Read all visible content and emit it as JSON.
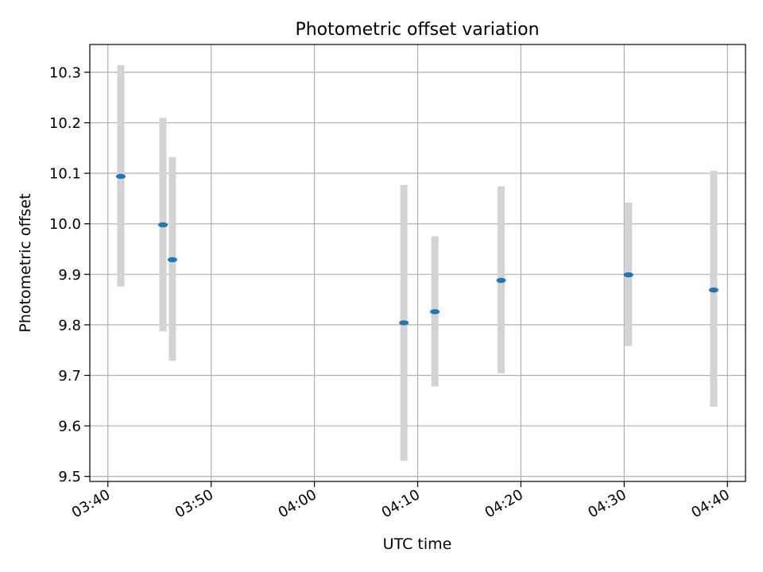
{
  "chart_data": {
    "type": "scatter",
    "title": "Photometric offset variation",
    "xlabel": "UTC time",
    "ylabel": "Photometric offset",
    "x_tick_labels": [
      "03:40",
      "03:50",
      "04:00",
      "04:10",
      "04:20",
      "04:30",
      "04:40"
    ],
    "x_tick_minutes": [
      220,
      230,
      240,
      250,
      260,
      270,
      280
    ],
    "y_tick_labels": [
      "9.5",
      "9.6",
      "9.7",
      "9.8",
      "9.9",
      "10.0",
      "10.1",
      "10.2",
      "10.3"
    ],
    "y_tick_values": [
      9.5,
      9.6,
      9.7,
      9.8,
      9.9,
      10.0,
      10.1,
      10.2,
      10.3
    ],
    "xlim": [
      "03:38:15",
      "04:41:45"
    ],
    "ylim": [
      9.49,
      10.355
    ],
    "grid": true,
    "points": [
      {
        "x": "03:41:15",
        "y": 10.094,
        "yerr_low": 9.876,
        "yerr_high": 10.314
      },
      {
        "x": "03:45:20",
        "y": 9.998,
        "yerr_low": 9.787,
        "yerr_high": 10.21
      },
      {
        "x": "03:46:15",
        "y": 9.929,
        "yerr_low": 9.729,
        "yerr_high": 10.132
      },
      {
        "x": "04:08:40",
        "y": 9.804,
        "yerr_low": 9.531,
        "yerr_high": 10.077
      },
      {
        "x": "04:11:40",
        "y": 9.826,
        "yerr_low": 9.678,
        "yerr_high": 9.975
      },
      {
        "x": "04:18:05",
        "y": 9.888,
        "yerr_low": 9.704,
        "yerr_high": 10.074
      },
      {
        "x": "04:30:25",
        "y": 9.899,
        "yerr_low": 9.758,
        "yerr_high": 10.042
      },
      {
        "x": "04:38:40",
        "y": 9.869,
        "yerr_low": 9.638,
        "yerr_high": 10.105
      }
    ],
    "colors": {
      "point": "#1f77b4",
      "errorbar": "#d3d3d3",
      "grid": "#b0b0b0",
      "axes": "#000000"
    }
  }
}
